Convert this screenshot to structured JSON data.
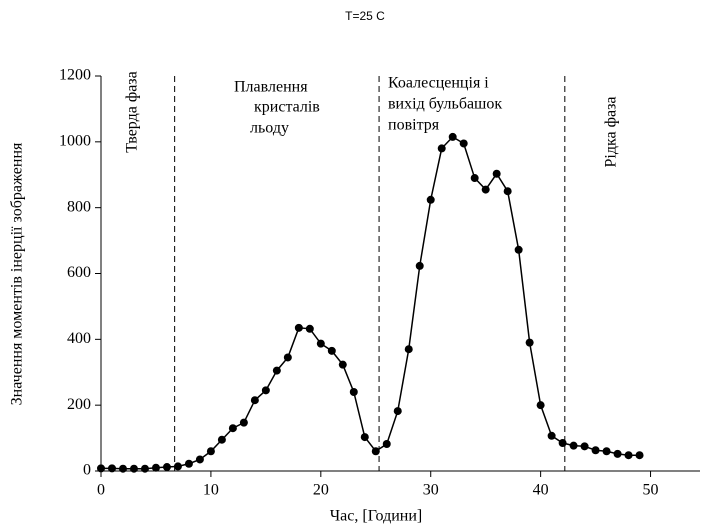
{
  "chart_data": {
    "type": "line",
    "title": "T=25 C",
    "x_label": "Час, [Години]",
    "y_label": "Значення моментів інерції зображення",
    "x": [
      0,
      1,
      2,
      3,
      4,
      5,
      6,
      7,
      8,
      9,
      10,
      11,
      12,
      13,
      14,
      15,
      16,
      17,
      18,
      19,
      20,
      21,
      22,
      23,
      24,
      25,
      26,
      27,
      28,
      29,
      30,
      31,
      32,
      33,
      34,
      35,
      36,
      37,
      38,
      39,
      40,
      41,
      42,
      43,
      44,
      45,
      46,
      47,
      48,
      49
    ],
    "series": [
      {
        "color": "#000000",
        "values": [
          8,
          8,
          7,
          7,
          7,
          10,
          12,
          14,
          22,
          35,
          60,
          95,
          130,
          147,
          215,
          245,
          305,
          345,
          435,
          432,
          387,
          365,
          323,
          240,
          103,
          60,
          82,
          182,
          370,
          623,
          824,
          980,
          1015,
          995,
          890,
          855,
          903,
          850,
          672,
          390,
          200,
          107,
          85,
          77,
          75,
          63,
          60,
          52,
          48,
          48
        ]
      }
    ],
    "xlim": [
      0,
      54.5
    ],
    "ylim": [
      0,
      1200
    ],
    "xticks": [
      0,
      10,
      20,
      30,
      40,
      50
    ],
    "yticks": [
      0,
      200,
      400,
      600,
      800,
      1000,
      1200
    ],
    "phase_boundaries": [
      6.7,
      25.3,
      42.2
    ],
    "annotations": [
      [
        "Тверда фаза"
      ],
      [
        "Плавлення",
        "кристалів",
        "льоду"
      ],
      [
        "Коалесценція і",
        "вихід бульбашок",
        "повітря"
      ],
      [
        "Рідка фаза"
      ]
    ]
  }
}
